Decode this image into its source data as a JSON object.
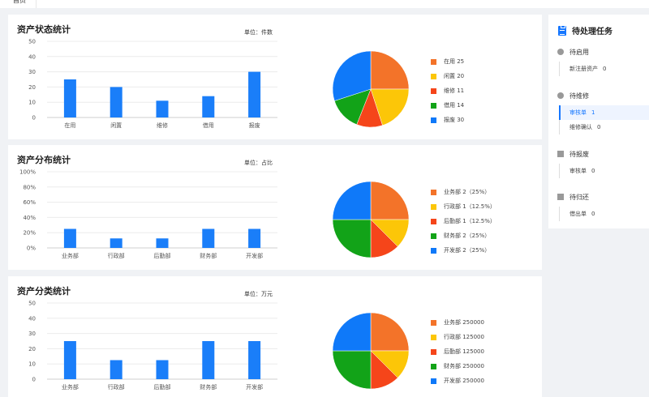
{
  "tabs": {
    "home_label": "首页"
  },
  "colors": {
    "orange": "#f37329",
    "yellow": "#fcc608",
    "red": "#f5451a",
    "green": "#12a318",
    "blue": "#0f79f9",
    "bar": "#1a7ef9"
  },
  "cards": [
    {
      "title": "资产状态统计",
      "unit": "单位：件数",
      "chart_data": {
        "type": "bar",
        "categories": [
          "在用",
          "闲置",
          "维修",
          "借用",
          "报废"
        ],
        "values": [
          25,
          20,
          11,
          14,
          30
        ],
        "ylim": [
          0,
          50
        ],
        "yticks": [
          "0",
          "10",
          "20",
          "30",
          "40",
          "50"
        ],
        "grid": true
      },
      "pie": {
        "values": [
          25,
          20,
          11,
          14,
          30
        ],
        "colors": [
          "#f37329",
          "#fcc608",
          "#f5451a",
          "#12a318",
          "#0f79f9"
        ],
        "legend": [
          "在用  25",
          "闲置  20",
          "维修  11",
          "借用  14",
          "报废  30"
        ]
      }
    },
    {
      "title": "资产分布统计",
      "unit": "单位：占比",
      "chart_data": {
        "type": "bar",
        "categories": [
          "业务部",
          "行政部",
          "后勤部",
          "财务部",
          "开发部"
        ],
        "values": [
          25,
          12.5,
          12.5,
          25,
          25
        ],
        "ylim": [
          0,
          100
        ],
        "yticks": [
          "0%",
          "20%",
          "40%",
          "60%",
          "80%",
          "100%"
        ],
        "grid": true
      },
      "pie": {
        "values": [
          2,
          1,
          1,
          2,
          2
        ],
        "colors": [
          "#f37329",
          "#fcc608",
          "#f5451a",
          "#12a318",
          "#0f79f9"
        ],
        "legend": [
          "业务部  2（25%）",
          "行政部  1（12.5%）",
          "后勤部  1（12.5%）",
          "财务部  2（25%）",
          "开发部  2（25%）"
        ]
      }
    },
    {
      "title": "资产分类统计",
      "unit": "单位：万元",
      "chart_data": {
        "type": "bar",
        "categories": [
          "业务部",
          "行政部",
          "后勤部",
          "财务部",
          "开发部"
        ],
        "values": [
          25,
          12.5,
          12.5,
          25,
          25
        ],
        "ylim": [
          0,
          50
        ],
        "yticks": [
          "0",
          "10",
          "20",
          "30",
          "40",
          "50"
        ],
        "grid": true
      },
      "pie": {
        "values": [
          250000,
          125000,
          125000,
          250000,
          250000
        ],
        "colors": [
          "#f37329",
          "#fcc608",
          "#f5451a",
          "#12a318",
          "#0f79f9"
        ],
        "legend": [
          "业务部  250000",
          "行政部  125000",
          "后勤部  125000",
          "财务部  250000",
          "开发部  250000"
        ]
      }
    }
  ],
  "sidebar": {
    "title": "待处理任务",
    "groups": [
      {
        "label": "待启用",
        "icon": "play-circle-icon",
        "items": [
          {
            "label": "新注册资产",
            "count": "0",
            "active": false
          }
        ]
      },
      {
        "label": "待维修",
        "icon": "wrench-circle-icon",
        "items": [
          {
            "label": "审核单",
            "count": "1",
            "active": true
          },
          {
            "label": "维修确认",
            "count": "0",
            "active": false
          }
        ]
      },
      {
        "label": "待报废",
        "icon": "trash-icon",
        "items": [
          {
            "label": "审核单",
            "count": "0",
            "active": false
          }
        ]
      },
      {
        "label": "待归还",
        "icon": "printer-icon",
        "items": [
          {
            "label": "借出单",
            "count": "0",
            "active": false
          }
        ]
      }
    ]
  }
}
